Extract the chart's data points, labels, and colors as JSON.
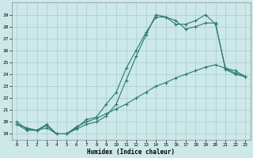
{
  "xlabel": "Humidex (Indice chaleur)",
  "background_color": "#cce8e8",
  "grid_color": "#aacccc",
  "line_color": "#2a7a6a",
  "xlim": [
    -0.5,
    23.5
  ],
  "ylim": [
    18.5,
    30.0
  ],
  "x_ticks": [
    0,
    1,
    2,
    3,
    4,
    5,
    6,
    7,
    8,
    9,
    10,
    11,
    12,
    13,
    14,
    15,
    16,
    17,
    18,
    19,
    20,
    21,
    22,
    23
  ],
  "yticks": [
    19,
    20,
    21,
    22,
    23,
    24,
    25,
    26,
    27,
    28,
    29
  ],
  "series1_x": [
    0,
    1,
    2,
    3,
    4,
    5,
    6,
    7,
    8,
    9,
    10,
    11,
    12,
    13,
    14,
    15,
    16,
    17,
    18,
    19,
    20,
    21,
    22,
    23
  ],
  "series1_y": [
    20.0,
    19.4,
    19.3,
    19.8,
    19.0,
    19.0,
    19.4,
    19.8,
    20.0,
    20.5,
    21.5,
    23.5,
    25.5,
    27.3,
    29.0,
    28.8,
    28.5,
    27.8,
    28.0,
    28.3,
    28.3,
    24.4,
    24.0,
    23.8
  ],
  "series2_x": [
    0,
    1,
    2,
    3,
    4,
    5,
    6,
    7,
    8,
    9,
    10,
    11,
    12,
    13,
    14,
    15,
    16,
    17,
    18,
    19,
    20,
    21,
    22,
    23
  ],
  "series2_y": [
    19.8,
    19.3,
    19.3,
    19.7,
    19.0,
    19.0,
    19.5,
    20.2,
    20.4,
    21.5,
    22.5,
    24.5,
    26.0,
    27.5,
    28.8,
    28.8,
    28.2,
    28.2,
    28.5,
    29.0,
    28.2,
    24.5,
    24.3,
    23.8
  ],
  "series3_x": [
    0,
    1,
    2,
    3,
    4,
    5,
    6,
    7,
    8,
    9,
    10,
    11,
    12,
    13,
    14,
    15,
    16,
    17,
    18,
    19,
    20,
    21,
    22,
    23
  ],
  "series3_y": [
    19.8,
    19.5,
    19.3,
    19.5,
    19.0,
    19.0,
    19.6,
    20.0,
    20.3,
    20.7,
    21.1,
    21.5,
    22.0,
    22.5,
    23.0,
    23.3,
    23.7,
    24.0,
    24.3,
    24.6,
    24.8,
    24.5,
    24.1,
    23.8
  ]
}
